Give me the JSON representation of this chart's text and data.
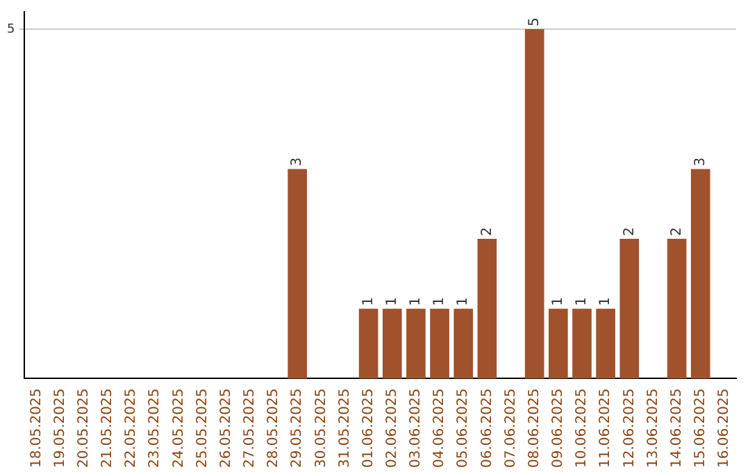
{
  "chart_data": {
    "type": "bar",
    "categories": [
      "18.05.2025",
      "19.05.2025",
      "20.05.2025",
      "21.05.2025",
      "22.05.2025",
      "23.05.2025",
      "24.05.2025",
      "25.05.2025",
      "26.05.2025",
      "27.05.2025",
      "28.05.2025",
      "29.05.2025",
      "30.05.2025",
      "31.05.2025",
      "01.06.2025",
      "02.06.2025",
      "03.06.2025",
      "04.06.2025",
      "05.06.2025",
      "06.06.2025",
      "07.06.2025",
      "08.06.2025",
      "09.06.2025",
      "10.06.2025",
      "11.06.2025",
      "12.06.2025",
      "13.06.2025",
      "14.06.2025",
      "15.06.2025",
      "16.06.2025"
    ],
    "values": [
      0,
      0,
      0,
      0,
      0,
      0,
      0,
      0,
      0,
      0,
      0,
      3,
      0,
      0,
      1,
      1,
      1,
      1,
      1,
      2,
      0,
      5,
      1,
      1,
      1,
      2,
      0,
      2,
      3,
      0
    ],
    "value_labels": [
      null,
      null,
      null,
      null,
      null,
      null,
      null,
      null,
      null,
      null,
      null,
      "3",
      null,
      null,
      "1",
      "1",
      "1",
      "1",
      "1",
      "2",
      null,
      "5",
      "1",
      "1",
      "1",
      "2",
      null,
      "2",
      "3",
      null
    ],
    "color": "#a0522d",
    "ylim": [
      0,
      5.25
    ],
    "yticks": [
      5
    ],
    "grid": "y",
    "legend": false
  }
}
